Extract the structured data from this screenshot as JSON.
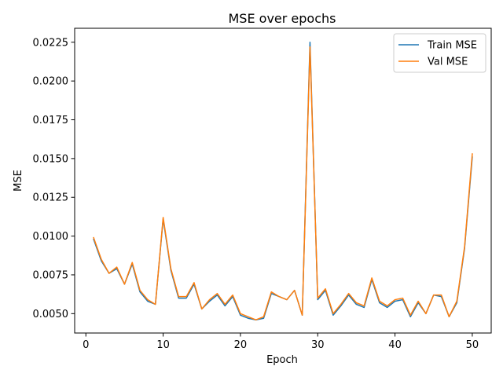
{
  "chart_data": {
    "type": "line",
    "title": "MSE over epochs",
    "xlabel": "Epoch",
    "ylabel": "MSE",
    "xlim": [
      -1.45,
      52.45
    ],
    "ylim": [
      0.00375,
      0.0234
    ],
    "xticks": [
      0,
      10,
      20,
      30,
      40,
      50
    ],
    "xtick_labels": [
      "0",
      "10",
      "20",
      "30",
      "40",
      "50"
    ],
    "yticks": [
      0.005,
      0.0075,
      0.01,
      0.0125,
      0.015,
      0.0175,
      0.02,
      0.0225
    ],
    "ytick_labels": [
      "0.0050",
      "0.0075",
      "0.0100",
      "0.0125",
      "0.0150",
      "0.0175",
      "0.0200",
      "0.0225"
    ],
    "grid": false,
    "legend_position": "top-right",
    "x": [
      1,
      2,
      3,
      4,
      5,
      6,
      7,
      8,
      9,
      10,
      11,
      12,
      13,
      14,
      15,
      16,
      17,
      18,
      19,
      20,
      21,
      22,
      23,
      24,
      25,
      26,
      27,
      28,
      29,
      30,
      31,
      32,
      33,
      34,
      35,
      36,
      37,
      38,
      39,
      40,
      41,
      42,
      43,
      44,
      45,
      46,
      47,
      48,
      49,
      50
    ],
    "series": [
      {
        "name": "Train MSE",
        "color": "#1f77b4",
        "values": [
          0.0098,
          0.0084,
          0.0076,
          0.0079,
          0.0069,
          0.0082,
          0.0064,
          0.0058,
          0.0056,
          0.0111,
          0.0078,
          0.006,
          0.006,
          0.0069,
          0.0053,
          0.0058,
          0.0062,
          0.0055,
          0.0061,
          0.0049,
          0.0047,
          0.0046,
          0.0047,
          0.0063,
          0.0061,
          0.0059,
          0.0065,
          0.0049,
          0.0225,
          0.0059,
          0.0065,
          0.0049,
          0.0055,
          0.0062,
          0.0056,
          0.0054,
          0.0072,
          0.0057,
          0.0054,
          0.0058,
          0.0059,
          0.0048,
          0.0057,
          0.005,
          0.0062,
          0.0061,
          0.0048,
          0.0057,
          0.0092,
          0.0151
        ]
      },
      {
        "name": "Val MSE",
        "color": "#ff7f0e",
        "values": [
          0.0099,
          0.0085,
          0.0076,
          0.008,
          0.0069,
          0.0083,
          0.0065,
          0.0059,
          0.0056,
          0.0112,
          0.0079,
          0.0061,
          0.0061,
          0.007,
          0.0053,
          0.0059,
          0.0063,
          0.0056,
          0.0062,
          0.005,
          0.0048,
          0.0046,
          0.0048,
          0.0064,
          0.0061,
          0.0059,
          0.0065,
          0.0049,
          0.0222,
          0.006,
          0.0066,
          0.005,
          0.0056,
          0.0063,
          0.0057,
          0.0055,
          0.0073,
          0.0058,
          0.0055,
          0.0059,
          0.006,
          0.0049,
          0.0058,
          0.005,
          0.0062,
          0.0062,
          0.0048,
          0.0058,
          0.0093,
          0.0153
        ]
      }
    ]
  }
}
